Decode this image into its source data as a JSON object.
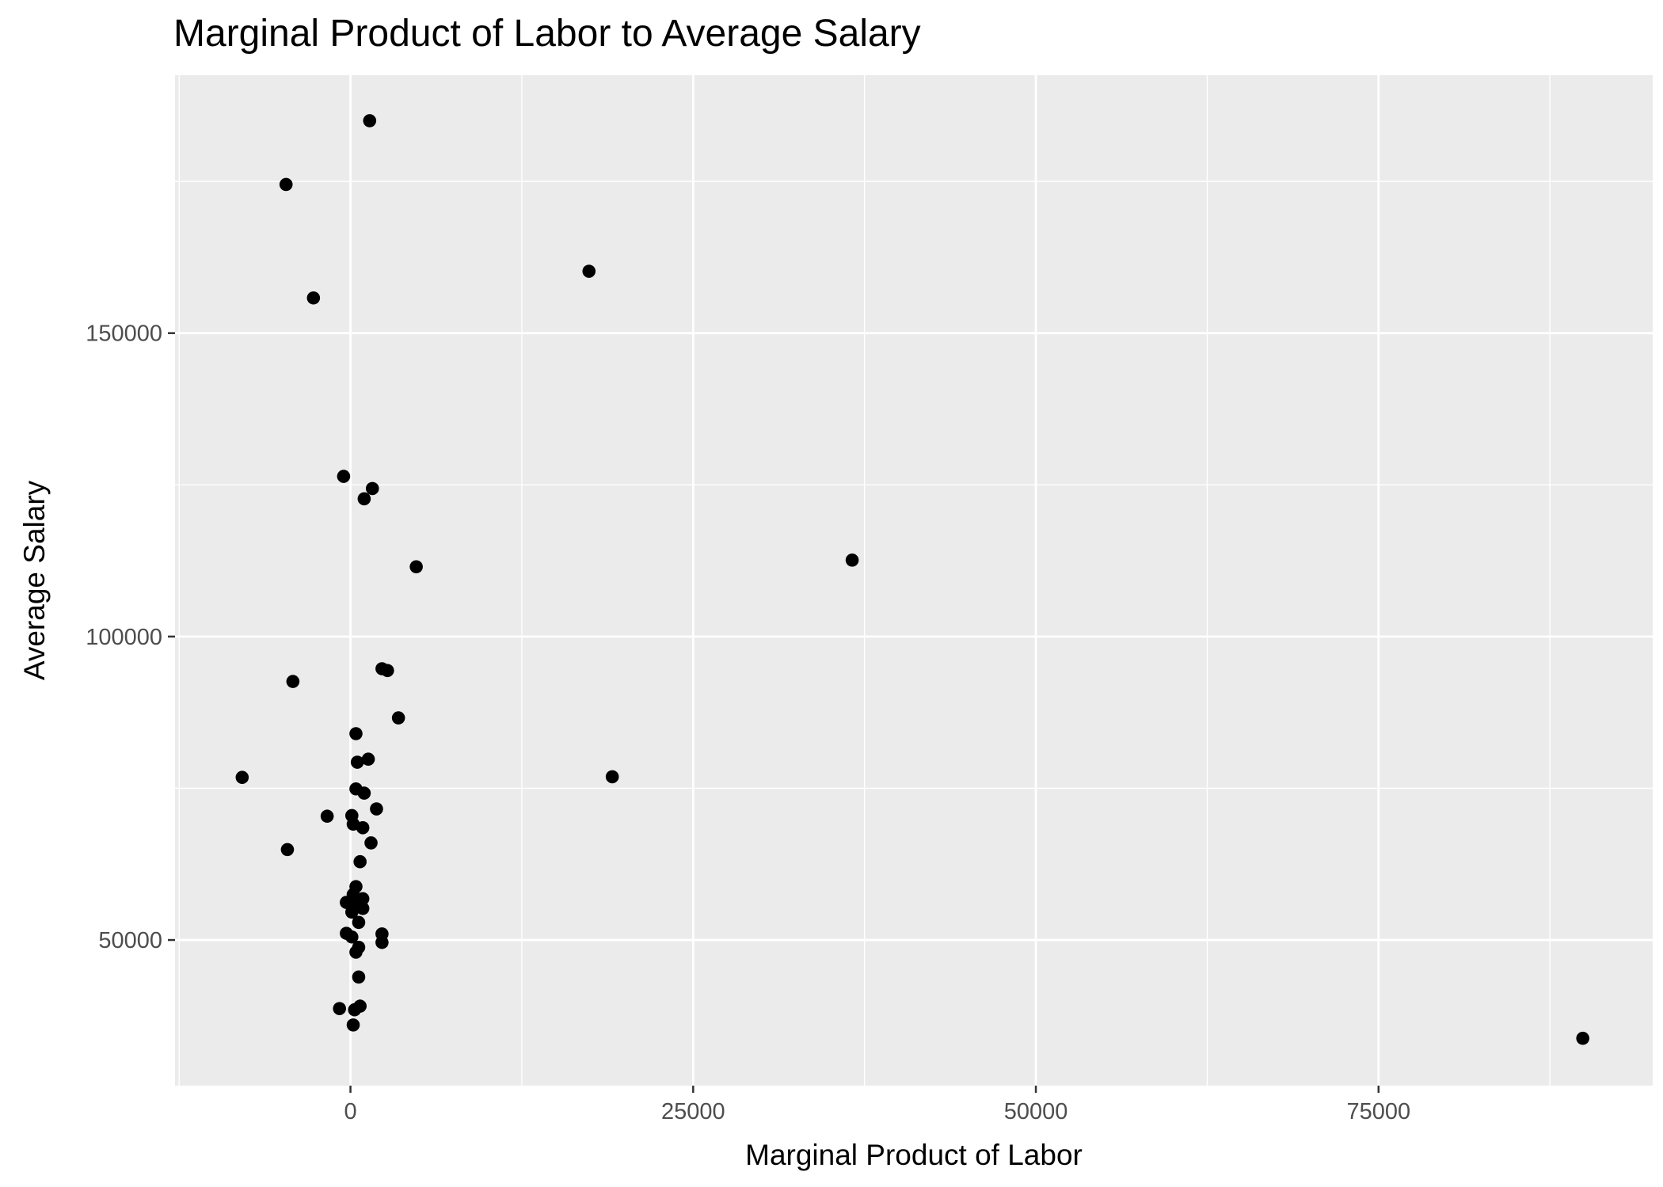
{
  "chart_data": {
    "type": "scatter",
    "title": "Marginal Product of Labor to Average Salary",
    "xlabel": "Marginal Product of Labor",
    "ylabel": "Average Salary",
    "xlim": [
      -12800,
      95000
    ],
    "ylim": [
      26000,
      192500
    ],
    "x_ticks": [
      0,
      25000,
      50000,
      75000
    ],
    "x_tick_labels": [
      "0",
      "25000",
      "50000",
      "75000"
    ],
    "y_ticks": [
      50000,
      100000,
      150000
    ],
    "y_tick_labels": [
      "50000",
      "100000",
      "150000"
    ],
    "grid": true,
    "panel_background": "#EBEBEB",
    "grid_color": "#FFFFFF",
    "point_color": "#000000",
    "points": [
      {
        "x": 1400,
        "y": 185000
      },
      {
        "x": -4700,
        "y": 174500
      },
      {
        "x": 17400,
        "y": 160200
      },
      {
        "x": -2700,
        "y": 155800
      },
      {
        "x": -500,
        "y": 126400
      },
      {
        "x": 1600,
        "y": 124400
      },
      {
        "x": 1000,
        "y": 122700
      },
      {
        "x": 36600,
        "y": 112600
      },
      {
        "x": 4800,
        "y": 111500
      },
      {
        "x": 2300,
        "y": 94700
      },
      {
        "x": 2700,
        "y": 94400
      },
      {
        "x": -4200,
        "y": 92600
      },
      {
        "x": 3500,
        "y": 86600
      },
      {
        "x": 400,
        "y": 84000
      },
      {
        "x": 1300,
        "y": 79800
      },
      {
        "x": 500,
        "y": 79300
      },
      {
        "x": -7900,
        "y": 76800
      },
      {
        "x": 19100,
        "y": 76900
      },
      {
        "x": 400,
        "y": 74900
      },
      {
        "x": 1000,
        "y": 74200
      },
      {
        "x": 1900,
        "y": 71600
      },
      {
        "x": -1700,
        "y": 70400
      },
      {
        "x": 100,
        "y": 70500
      },
      {
        "x": 200,
        "y": 69100
      },
      {
        "x": 900,
        "y": 68500
      },
      {
        "x": 1500,
        "y": 66000
      },
      {
        "x": -4600,
        "y": 64900
      },
      {
        "x": 700,
        "y": 62900
      },
      {
        "x": 400,
        "y": 58800
      },
      {
        "x": 200,
        "y": 57500
      },
      {
        "x": 900,
        "y": 56800
      },
      {
        "x": -300,
        "y": 56200
      },
      {
        "x": 500,
        "y": 55700
      },
      {
        "x": 900,
        "y": 55200
      },
      {
        "x": 100,
        "y": 54600
      },
      {
        "x": 600,
        "y": 52900
      },
      {
        "x": -300,
        "y": 51100
      },
      {
        "x": 2300,
        "y": 51000
      },
      {
        "x": 100,
        "y": 50500
      },
      {
        "x": 2300,
        "y": 49600
      },
      {
        "x": 600,
        "y": 48800
      },
      {
        "x": 400,
        "y": 48000
      },
      {
        "x": 600,
        "y": 43900
      },
      {
        "x": -800,
        "y": 38700
      },
      {
        "x": 700,
        "y": 39100
      },
      {
        "x": 300,
        "y": 38500
      },
      {
        "x": 200,
        "y": 36000
      },
      {
        "x": 89900,
        "y": 33800
      }
    ]
  }
}
